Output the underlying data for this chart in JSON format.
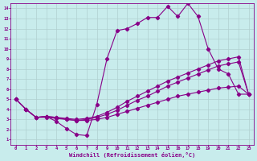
{
  "bg_color": "#c8ecec",
  "line_color": "#880088",
  "grid_color": "#b0d0d0",
  "xlabel": "Windchill (Refroidissement éolien,°C)",
  "xlim": [
    -0.5,
    23.5
  ],
  "ylim": [
    0.5,
    14.5
  ],
  "xticks": [
    0,
    1,
    2,
    3,
    4,
    5,
    6,
    7,
    8,
    9,
    10,
    11,
    12,
    13,
    14,
    15,
    16,
    17,
    18,
    19,
    20,
    21,
    22,
    23
  ],
  "yticks": [
    1,
    2,
    3,
    4,
    5,
    6,
    7,
    8,
    9,
    10,
    11,
    12,
    13,
    14
  ],
  "line1_x": [
    0,
    1,
    2,
    3,
    4,
    5,
    6,
    7,
    8,
    9,
    10,
    11,
    12,
    13,
    14,
    15,
    16,
    17,
    18,
    19,
    20,
    21,
    22,
    23
  ],
  "line1_y": [
    5.0,
    4.0,
    3.2,
    3.3,
    2.8,
    2.1,
    1.5,
    1.4,
    4.5,
    9.0,
    11.8,
    12.0,
    12.5,
    13.1,
    13.1,
    14.2,
    13.2,
    14.5,
    13.2,
    10.0,
    8.0,
    7.5,
    5.5,
    5.5
  ],
  "line2_x": [
    0,
    1,
    2,
    3,
    4,
    5,
    6,
    7,
    8,
    9,
    10,
    11,
    12,
    13,
    14,
    15,
    16,
    17,
    18,
    19,
    20,
    21,
    22,
    23
  ],
  "line2_y": [
    5.0,
    4.0,
    3.2,
    3.3,
    3.2,
    3.1,
    3.0,
    3.1,
    3.3,
    3.7,
    4.2,
    4.8,
    5.3,
    5.8,
    6.3,
    6.8,
    7.2,
    7.6,
    8.0,
    8.4,
    8.8,
    9.0,
    9.2,
    5.5
  ],
  "line3_x": [
    0,
    1,
    2,
    3,
    4,
    5,
    6,
    7,
    8,
    9,
    10,
    11,
    12,
    13,
    14,
    15,
    16,
    17,
    18,
    19,
    20,
    21,
    22,
    23
  ],
  "line3_y": [
    5.0,
    4.0,
    3.2,
    3.3,
    3.2,
    3.0,
    2.9,
    3.0,
    3.2,
    3.5,
    3.9,
    4.4,
    4.9,
    5.3,
    5.8,
    6.3,
    6.7,
    7.1,
    7.5,
    7.9,
    8.3,
    8.5,
    8.7,
    5.5
  ],
  "line4_x": [
    0,
    1,
    2,
    3,
    4,
    5,
    6,
    7,
    8,
    9,
    10,
    11,
    12,
    13,
    14,
    15,
    16,
    17,
    18,
    19,
    20,
    21,
    22,
    23
  ],
  "line4_y": [
    5.0,
    4.0,
    3.2,
    3.2,
    3.1,
    3.0,
    2.9,
    2.9,
    3.0,
    3.2,
    3.5,
    3.8,
    4.1,
    4.4,
    4.7,
    5.0,
    5.3,
    5.5,
    5.7,
    5.9,
    6.1,
    6.2,
    6.3,
    5.5
  ]
}
